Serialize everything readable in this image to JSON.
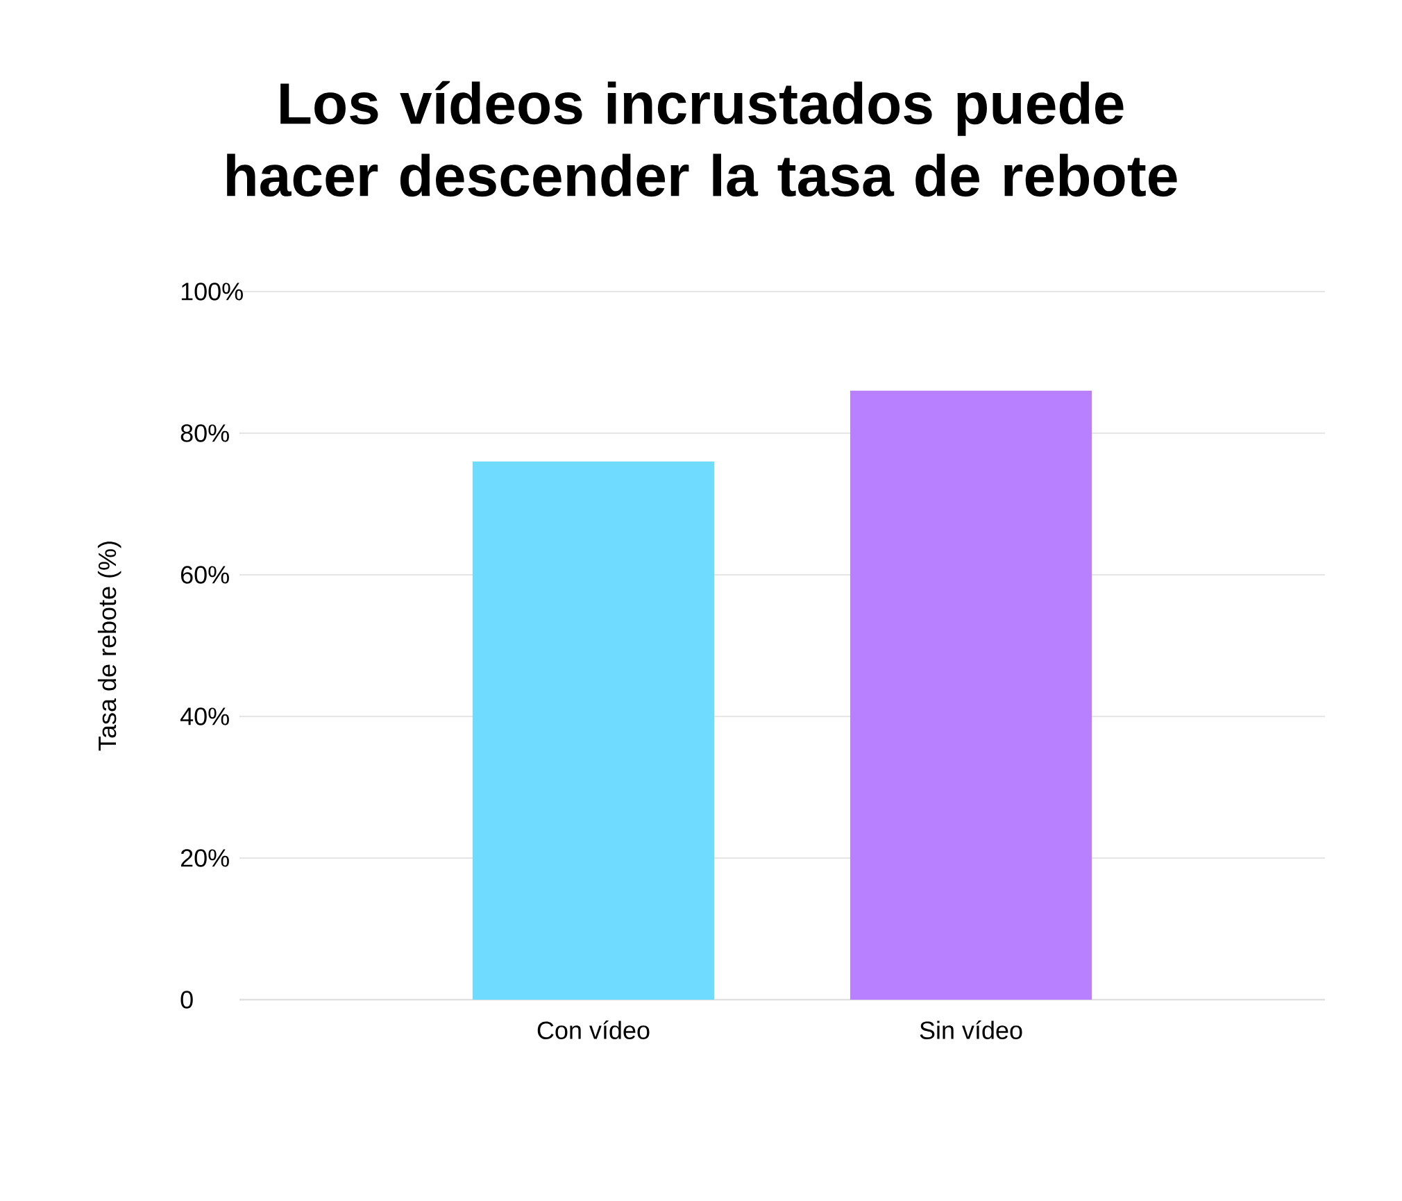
{
  "chart_data": {
    "type": "bar",
    "title": "Los vídeos incrustados puede hacer descender la tasa de rebote",
    "ylabel": "Tasa de rebote (%)",
    "categories": [
      "Con vídeo",
      "Sin vídeo"
    ],
    "values": [
      76,
      86
    ],
    "colors": [
      "#6fdbfe",
      "#b880ff"
    ],
    "ylim": [
      0,
      100
    ],
    "yticks": [
      {
        "value": 0,
        "label": "0"
      },
      {
        "value": 20,
        "label": "20%"
      },
      {
        "value": 40,
        "label": "40%"
      },
      {
        "value": 60,
        "label": "60%"
      },
      {
        "value": 80,
        "label": "80%"
      },
      {
        "value": 100,
        "label": "100%"
      }
    ],
    "grid": "y"
  }
}
